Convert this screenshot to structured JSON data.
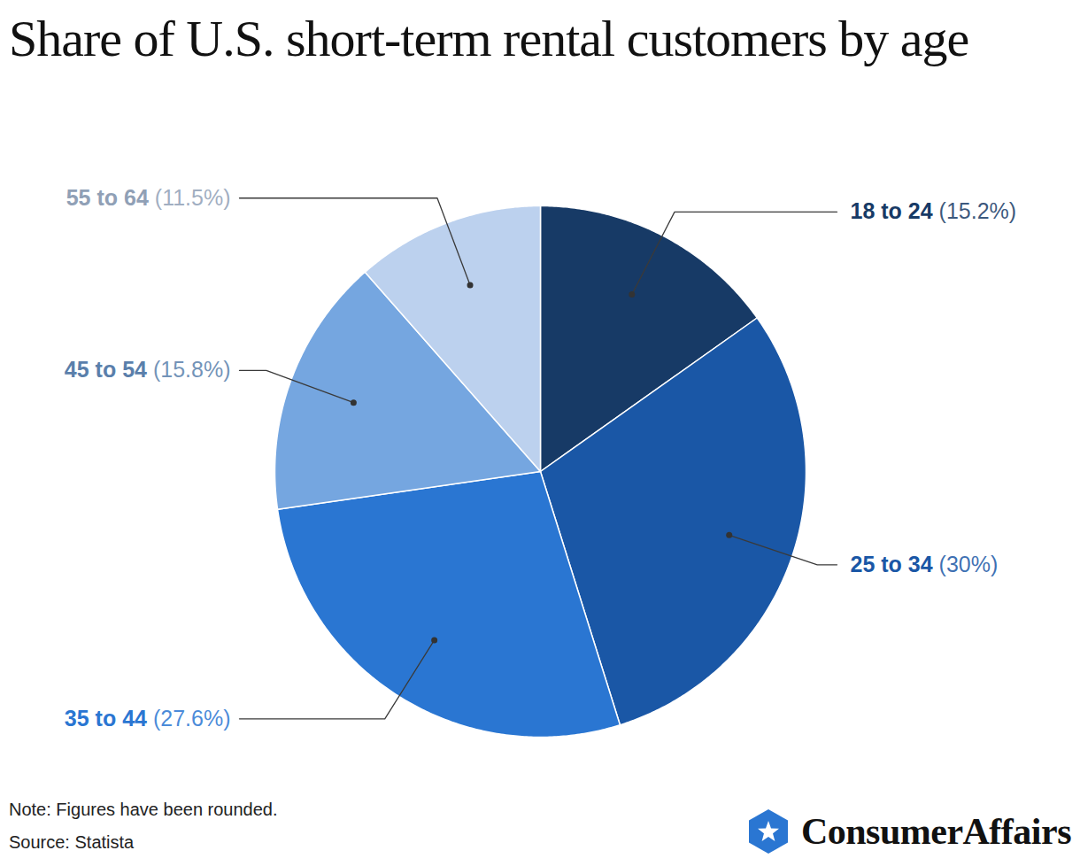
{
  "chart_data": {
    "type": "pie",
    "title": "Share of U.S. short-term rental customers by age",
    "categories": [
      "18 to 24",
      "25 to 34",
      "35 to 44",
      "45 to 54",
      "55 to 64"
    ],
    "values": [
      15.2,
      30,
      27.6,
      15.8,
      11.5
    ],
    "value_labels": [
      "(15.2%)",
      "(30%)",
      "(27.6%)",
      "(15.8%)",
      "(11.5%)"
    ],
    "colors": [
      "#173a66",
      "#1a57a6",
      "#2a76d2",
      "#75a6e0",
      "#bcd1ee"
    ],
    "data_labels": true,
    "note": "Note: Figures have been rounded.",
    "source": "Source: Statista",
    "logo": "ConsumerAffairs"
  }
}
